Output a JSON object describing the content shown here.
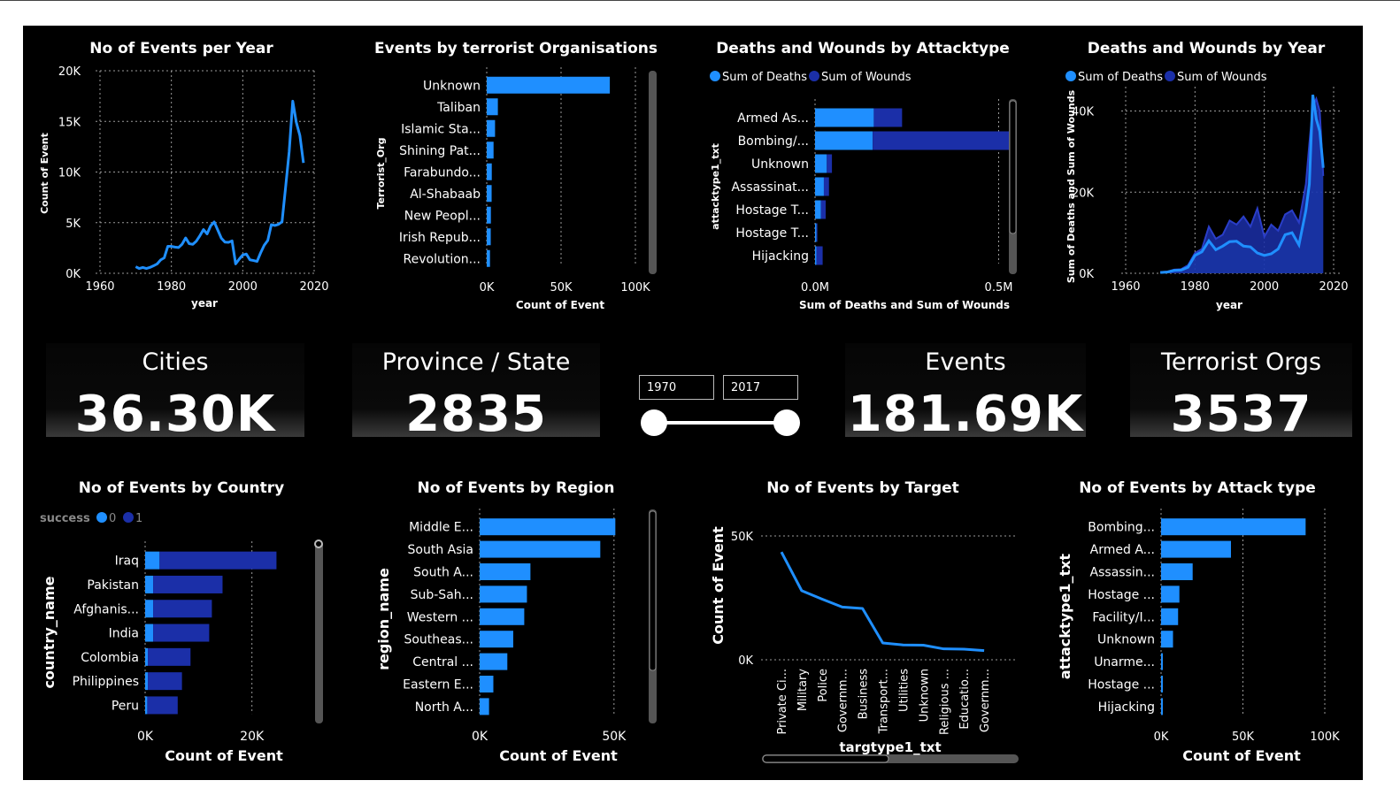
{
  "kpis": {
    "cities": {
      "label": "Cities",
      "value": "36.30K"
    },
    "province": {
      "label": "Province / State",
      "value": "2835"
    },
    "events": {
      "label": "Events",
      "value": "181.69K"
    },
    "orgs": {
      "label": "Terrorist Orgs",
      "value": "3537"
    }
  },
  "slicer": {
    "start": "1970",
    "end": "2017"
  },
  "colors": {
    "light": "#1f8fff",
    "dark": "#1b2fa8",
    "grid": "#9a9a9a",
    "text": "#ffffff"
  },
  "chart_data": [
    {
      "id": "events_per_year",
      "type": "line",
      "title": "No of Events per Year",
      "xlabel": "year",
      "ylabel": "Count of Event",
      "xlim": [
        1960,
        2020
      ],
      "ylim": [
        0,
        20000
      ],
      "xticks": [
        "1960",
        "1980",
        "2000",
        "2020"
      ],
      "yticks": [
        "0K",
        "5K",
        "10K",
        "15K",
        "20K"
      ],
      "x": [
        1970,
        1971,
        1972,
        1973,
        1974,
        1975,
        1976,
        1977,
        1978,
        1979,
        1980,
        1981,
        1982,
        1983,
        1984,
        1985,
        1986,
        1987,
        1988,
        1989,
        1990,
        1991,
        1992,
        1994,
        1995,
        1996,
        1997,
        1998,
        1999,
        2000,
        2001,
        2002,
        2003,
        2004,
        2005,
        2006,
        2007,
        2008,
        2009,
        2010,
        2011,
        2012,
        2013,
        2014,
        2015,
        2016,
        2017
      ],
      "y": [
        650,
        470,
        570,
        470,
        580,
        740,
        920,
        1320,
        1530,
        2660,
        2660,
        2590,
        2540,
        2870,
        3490,
        2920,
        2860,
        3180,
        3720,
        4320,
        3890,
        4680,
        5070,
        3460,
        3080,
        3060,
        3200,
        930,
        1400,
        1810,
        1900,
        1330,
        1260,
        1170,
        2020,
        2760,
        3240,
        4800,
        4720,
        4830,
        5080,
        8500,
        12000,
        17000,
        14900,
        13600,
        10900
      ]
    },
    {
      "id": "events_by_org",
      "type": "bar",
      "title": "Events by terrorist Organisations",
      "xlabel": "Count of Event",
      "ylabel": "Terrorist_Org",
      "xlim": [
        0,
        100000
      ],
      "xticks": [
        "0K",
        "50K",
        "100K"
      ],
      "categories": [
        "Unknown",
        "Taliban",
        "Islamic Sta...",
        "Shining Pat...",
        "Farabundo...",
        "Al-Shabaab",
        "New Peopl...",
        "Irish Repub...",
        "Revolution..."
      ],
      "values": [
        82800,
        7500,
        5600,
        4600,
        3400,
        3300,
        2800,
        2700,
        2200
      ]
    },
    {
      "id": "deaths_by_attacktype",
      "type": "bar",
      "title": "Deaths and Wounds by Attacktype",
      "xlabel": "Sum of Deaths and Sum of Wounds",
      "ylabel": "attacktype1_txt",
      "xlim": [
        0,
        600000
      ],
      "xticks": [
        "0.0M",
        "0.5M"
      ],
      "legend": [
        "Sum of Deaths",
        "Sum of Wounds"
      ],
      "categories": [
        "Armed As...",
        "Bombing/...",
        "Unknown",
        "Assassinat...",
        "Hostage T...",
        "Hostage T...",
        "Hijacking"
      ],
      "series": [
        {
          "name": "Sum of Deaths",
          "values": [
            160000,
            157000,
            32000,
            24000,
            16000,
            4000,
            3700
          ]
        },
        {
          "name": "Sum of Wounds",
          "values": [
            77000,
            372000,
            14000,
            14000,
            13000,
            1000,
            17000
          ]
        }
      ]
    },
    {
      "id": "deaths_by_year",
      "type": "area",
      "title": "Deaths and Wounds by Year",
      "xlabel": "year",
      "ylabel": "Sum of Deaths and Sum of Wounds",
      "xlim": [
        1960,
        2020
      ],
      "ylim": [
        0,
        46000
      ],
      "xticks": [
        "1960",
        "1980",
        "2000",
        "2020"
      ],
      "yticks": [
        "0K",
        "20K",
        "40K"
      ],
      "legend": [
        "Sum of Deaths",
        "Sum of Wounds"
      ],
      "x": [
        1970,
        1972,
        1974,
        1976,
        1978,
        1980,
        1982,
        1984,
        1986,
        1988,
        1990,
        1992,
        1994,
        1996,
        1998,
        2000,
        2002,
        2004,
        2006,
        2008,
        2010,
        2012,
        2013,
        2014,
        2015,
        2016,
        2017
      ],
      "series": [
        {
          "name": "Sum of Deaths",
          "values": [
            200,
            300,
            700,
            800,
            1500,
            4400,
            5300,
            8000,
            5800,
            6700,
            7800,
            7900,
            6700,
            6500,
            5000,
            4400,
            4800,
            6000,
            9500,
            10000,
            7000,
            15500,
            22000,
            44000,
            38000,
            35000,
            26000
          ]
        },
        {
          "name": "Sum of Wounds",
          "values": [
            300,
            400,
            900,
            1000,
            2000,
            5000,
            6000,
            11500,
            8500,
            9500,
            13000,
            12000,
            14000,
            11500,
            16000,
            9000,
            12000,
            10500,
            14500,
            15500,
            12500,
            22000,
            32000,
            41000,
            43000,
            40000,
            24000
          ]
        }
      ]
    },
    {
      "id": "events_by_country",
      "type": "bar",
      "title": "No of Events by Country",
      "xlabel": "Count of Event",
      "ylabel": "country_name",
      "xlim": [
        0,
        30000
      ],
      "xticks": [
        "0K",
        "20K"
      ],
      "legend_title": "success",
      "legend": [
        "0",
        "1"
      ],
      "categories": [
        "Iraq",
        "Pakistan",
        "Afghanis...",
        "India",
        "Colombia",
        "Philippines",
        "Peru"
      ],
      "series": [
        {
          "name": "0",
          "values": [
            2700,
            1500,
            1500,
            1500,
            500,
            500,
            400
          ]
        },
        {
          "name": "1",
          "values": [
            21900,
            13000,
            11000,
            10500,
            8000,
            6400,
            5700
          ]
        }
      ]
    },
    {
      "id": "events_by_region",
      "type": "bar",
      "title": "No of Events by Region",
      "xlabel": "Count of Event",
      "ylabel": "region_name",
      "xlim": [
        0,
        55000
      ],
      "xticks": [
        "0K",
        "50K"
      ],
      "categories": [
        "Middle E...",
        "South Asia",
        "South A...",
        "Sub-Sah...",
        "Western ...",
        "Southeas...",
        "Central ...",
        "Eastern E...",
        "North A..."
      ],
      "values": [
        50500,
        44900,
        18900,
        17600,
        16600,
        12500,
        10300,
        5100,
        3500
      ]
    },
    {
      "id": "events_by_target",
      "type": "line",
      "title": "No of Events by Target",
      "xlabel": "targtype1_txt",
      "ylabel": "Count of Event",
      "ylim": [
        0,
        50000
      ],
      "yticks": [
        "0K",
        "50K"
      ],
      "categories": [
        "Private Ci...",
        "Military",
        "Police",
        "Governm...",
        "Business",
        "Transport...",
        "Utilities",
        "Unknown",
        "Religious ...",
        "Educatio...",
        "Governm..."
      ],
      "values": [
        43500,
        27900,
        24500,
        21300,
        20700,
        6800,
        6000,
        5900,
        4400,
        4300,
        3700
      ]
    },
    {
      "id": "events_by_attack_type",
      "type": "bar",
      "title": "No of Events by Attack type",
      "xlabel": "Count of Event",
      "ylabel": "attacktype1_txt",
      "xlim": [
        0,
        100000
      ],
      "xticks": [
        "0K",
        "50K",
        "100K"
      ],
      "categories": [
        "Bombing...",
        "Armed A...",
        "Assassin...",
        "Hostage ...",
        "Facility/I...",
        "Unknown",
        "Unarme...",
        "Hostage ...",
        "Hijacking"
      ],
      "values": [
        88300,
        42700,
        19300,
        11200,
        10400,
        7300,
        1000,
        1000,
        700
      ]
    }
  ]
}
